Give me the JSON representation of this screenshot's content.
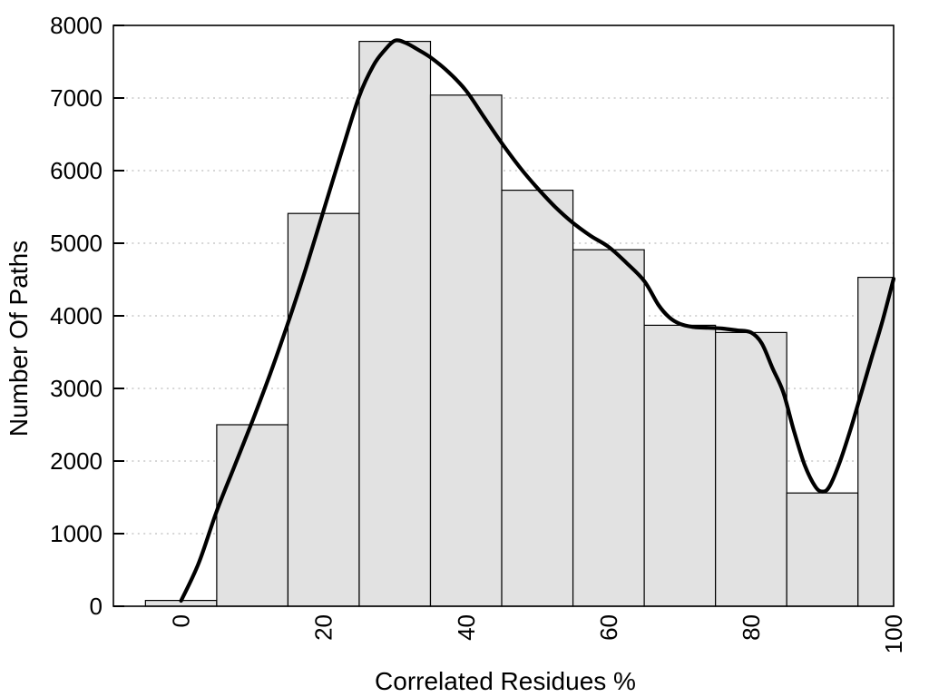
{
  "chart_data": {
    "type": "bar",
    "subtype": "histogram-with-density-curve",
    "title": "",
    "xlabel": "Correlated Residues %",
    "ylabel": "Number Of Paths",
    "xlim": [
      -9.5,
      100
    ],
    "ylim": [
      0,
      8000
    ],
    "grid": "dotted-horizontal",
    "legend": "none",
    "x_ticks": [
      0,
      20,
      40,
      60,
      80,
      100
    ],
    "x_tick_labels": [
      "0",
      "20",
      "40",
      "60",
      "80",
      "100"
    ],
    "x_tick_label_rotation_deg": -90,
    "y_ticks": [
      0,
      1000,
      2000,
      3000,
      4000,
      5000,
      6000,
      7000,
      8000
    ],
    "y_tick_labels": [
      "0",
      "1000",
      "2000",
      "3000",
      "4000",
      "5000",
      "6000",
      "7000",
      "8000"
    ],
    "gridlines_y": [
      1000,
      2000,
      3000,
      4000,
      5000,
      6000,
      7000
    ],
    "bin_centers": [
      0,
      10,
      20,
      30,
      40,
      50,
      60,
      70,
      80,
      90,
      100
    ],
    "bin_edges": [
      -5,
      5,
      15,
      25,
      35,
      45,
      55,
      65,
      75,
      85,
      95,
      100
    ],
    "bar_values": [
      80,
      2500,
      5410,
      7780,
      7040,
      5730,
      4910,
      3870,
      3770,
      1560,
      4530
    ],
    "curve_points": [
      [
        0,
        75
      ],
      [
        2.5,
        600
      ],
      [
        5,
        1310
      ],
      [
        7.5,
        1930
      ],
      [
        10,
        2550
      ],
      [
        12.5,
        3200
      ],
      [
        15,
        3900
      ],
      [
        17.5,
        4650
      ],
      [
        20,
        5450
      ],
      [
        22.5,
        6250
      ],
      [
        25,
        7025
      ],
      [
        27,
        7450
      ],
      [
        28.5,
        7650
      ],
      [
        30,
        7790
      ],
      [
        31.5,
        7760
      ],
      [
        33,
        7680
      ],
      [
        35,
        7560
      ],
      [
        37.5,
        7360
      ],
      [
        40,
        7100
      ],
      [
        42.5,
        6740
      ],
      [
        45,
        6380
      ],
      [
        47.5,
        6050
      ],
      [
        50,
        5760
      ],
      [
        52.5,
        5500
      ],
      [
        55,
        5280
      ],
      [
        57.5,
        5100
      ],
      [
        60,
        4950
      ],
      [
        62.5,
        4730
      ],
      [
        65,
        4480
      ],
      [
        67,
        4150
      ],
      [
        68.5,
        3980
      ],
      [
        70,
        3890
      ],
      [
        72,
        3845
      ],
      [
        74,
        3835
      ],
      [
        76,
        3825
      ],
      [
        78,
        3800
      ],
      [
        80,
        3770
      ],
      [
        81.5,
        3620
      ],
      [
        83,
        3280
      ],
      [
        84.5,
        2950
      ],
      [
        86,
        2420
      ],
      [
        87.5,
        1950
      ],
      [
        89,
        1650
      ],
      [
        90,
        1580
      ],
      [
        91,
        1650
      ],
      [
        92.5,
        2000
      ],
      [
        94,
        2450
      ],
      [
        95.5,
        2950
      ],
      [
        97,
        3450
      ],
      [
        98.5,
        3950
      ],
      [
        100,
        4510
      ]
    ],
    "colors": {
      "bar_fill": "#e2e2e2",
      "bar_stroke": "#000000",
      "curve": "#000000",
      "grid": "#c8c8c8",
      "axis": "#000000",
      "text": "#000000",
      "background": "#ffffff"
    }
  }
}
